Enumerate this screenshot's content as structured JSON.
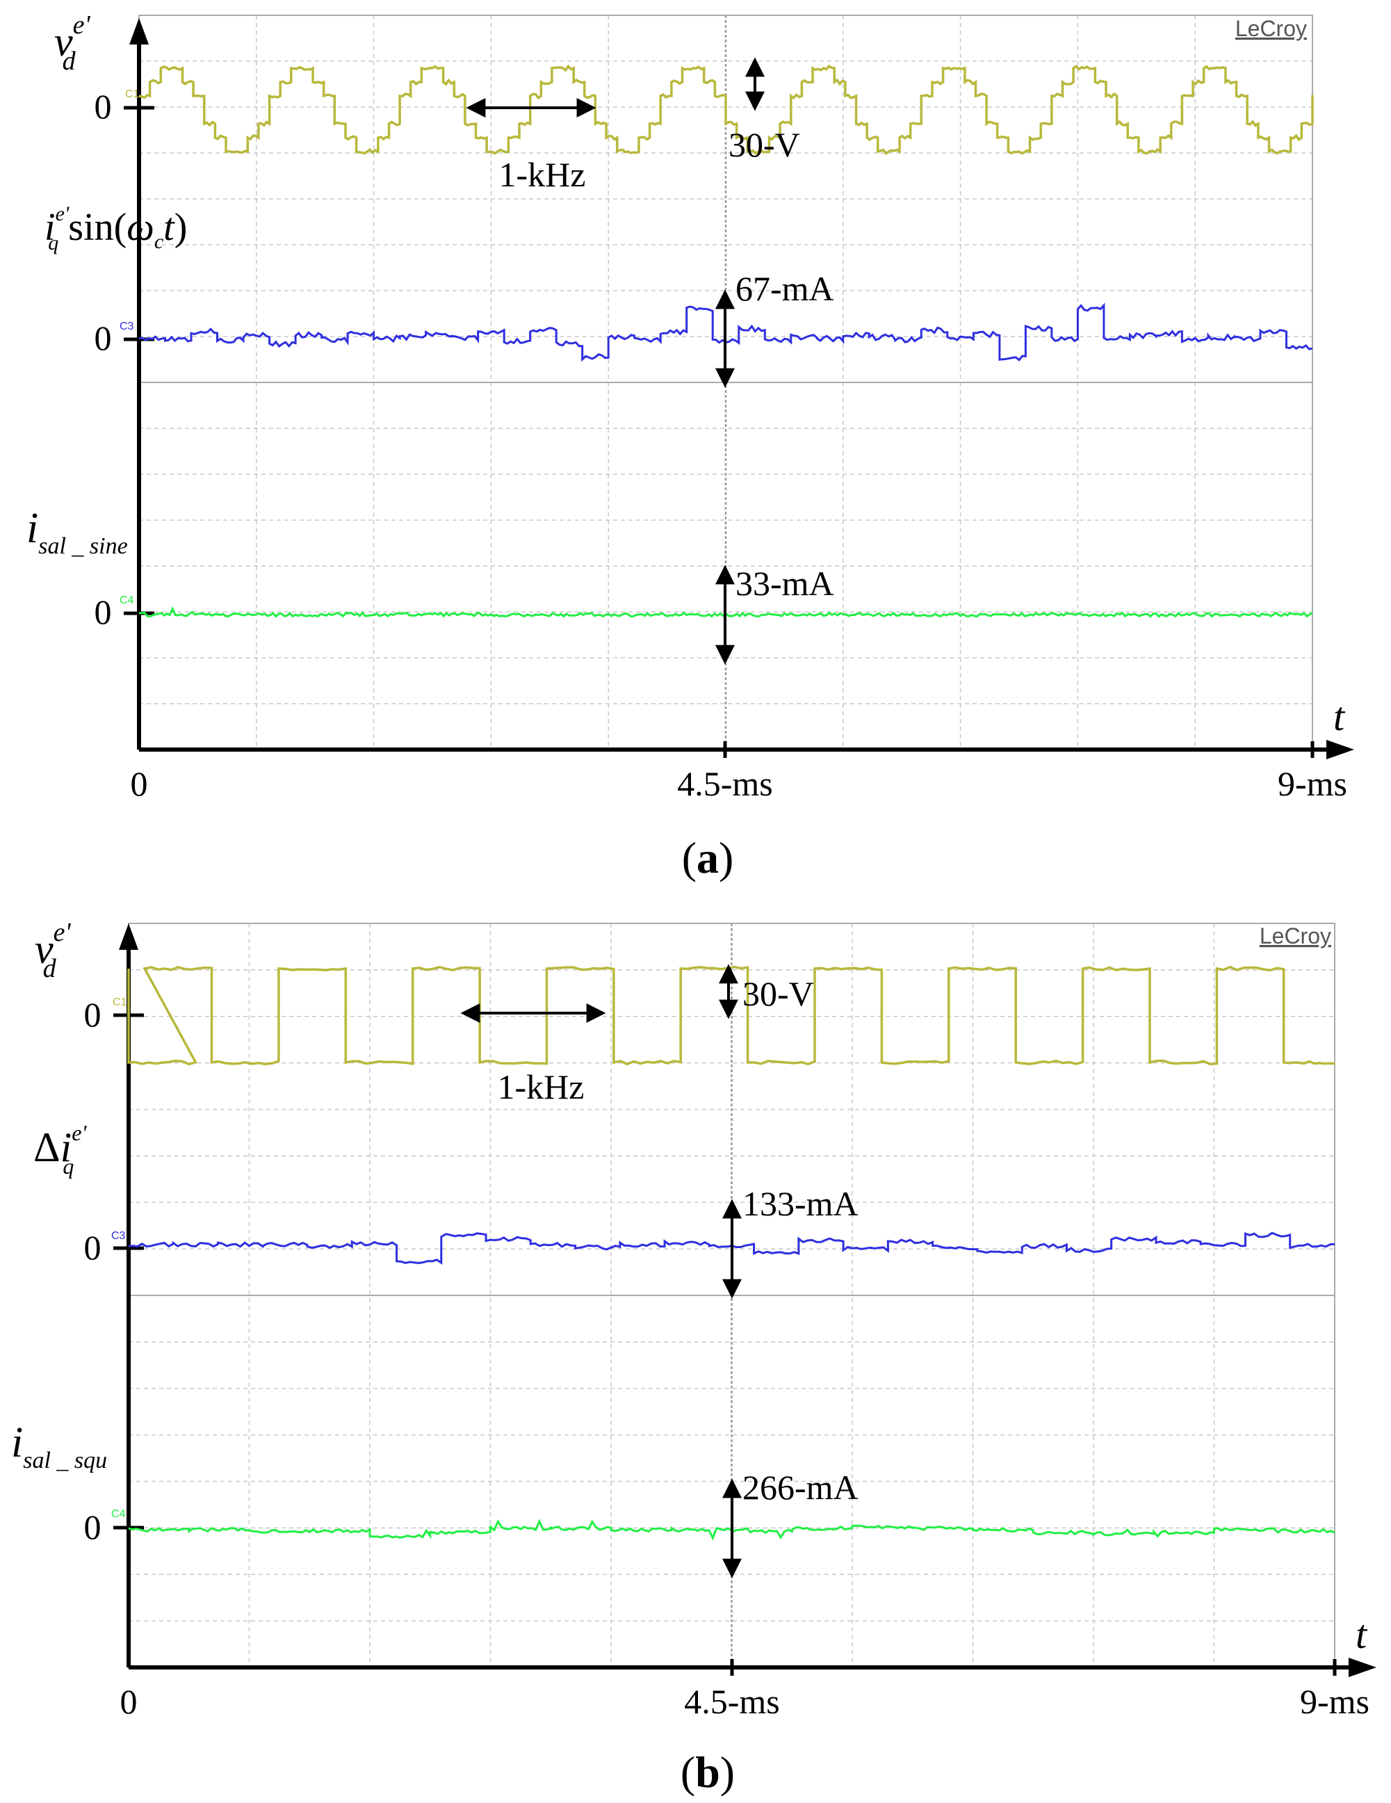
{
  "brand": "LeCroy",
  "colors": {
    "voltage": "#b8b83c",
    "current": "#2f2fe0",
    "saliency": "#22ee44",
    "grid": "#b4b4b4",
    "axis": "#000000"
  },
  "time_axis": {
    "label": "t",
    "ticks": [
      "0",
      "4.5-ms",
      "9-ms"
    ],
    "range_ms": [
      0,
      9
    ]
  },
  "chart_data": [
    {
      "type": "line",
      "panel_label_open": "(",
      "panel_label": "a",
      "panel_label_close": ")",
      "x_range_ms": [
        0,
        9
      ],
      "injection_frequency_annotation": "1-kHz",
      "traces": [
        {
          "channel": "C1",
          "zero_label": "0",
          "amplitude_label": "30-V",
          "waveform": "stepped-sine",
          "frequency_khz": 1,
          "ylabel_main": "v",
          "ylabel_sub": "d",
          "ylabel_sup": "e'"
        },
        {
          "channel": "C3",
          "zero_label": "0",
          "amplitude_label": "67-mA",
          "waveform": "noisy-step",
          "ylabel_main": "i",
          "ylabel_sub": "q",
          "ylabel_sup": "e'",
          "ylabel_suffix_fn": " sin(",
          "ylabel_omega": "ω",
          "ylabel_omega_sub": "c",
          "ylabel_t": "t",
          "ylabel_close": ")"
        },
        {
          "channel": "C4",
          "zero_label": "0",
          "amplitude_label": "33-mA",
          "waveform": "flat-noisy",
          "ylabel_main": "i",
          "ylabel_sub": "sal _ sine"
        }
      ]
    },
    {
      "type": "line",
      "panel_label_open": "(",
      "panel_label": "b",
      "panel_label_close": ")",
      "x_range_ms": [
        0,
        9
      ],
      "injection_frequency_annotation": "1-kHz",
      "traces": [
        {
          "channel": "C1",
          "zero_label": "0",
          "amplitude_label": "30-V",
          "waveform": "square",
          "frequency_khz": 1,
          "ylabel_main": "v",
          "ylabel_sub": "d",
          "ylabel_sup": "e'"
        },
        {
          "channel": "C3",
          "zero_label": "0",
          "amplitude_label": "133-mA",
          "waveform": "noisy-step",
          "ylabel_prefix": "Δ",
          "ylabel_main": "i",
          "ylabel_sub": "q",
          "ylabel_sup": "e'"
        },
        {
          "channel": "C4",
          "zero_label": "0",
          "amplitude_label": "266-mA",
          "waveform": "flat-noisy",
          "ylabel_main": "i",
          "ylabel_sub": "sal _ squ"
        }
      ]
    }
  ]
}
